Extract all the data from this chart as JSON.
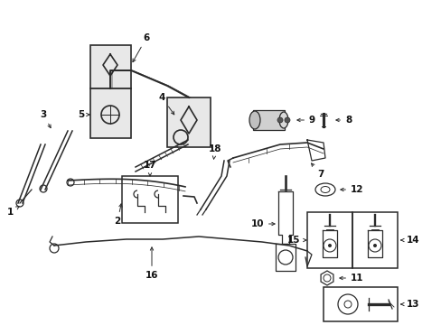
{
  "bg_color": "#ffffff",
  "line_color": "#2a2a2a",
  "text_color": "#111111",
  "fig_width": 4.89,
  "fig_height": 3.6,
  "dpi": 100
}
